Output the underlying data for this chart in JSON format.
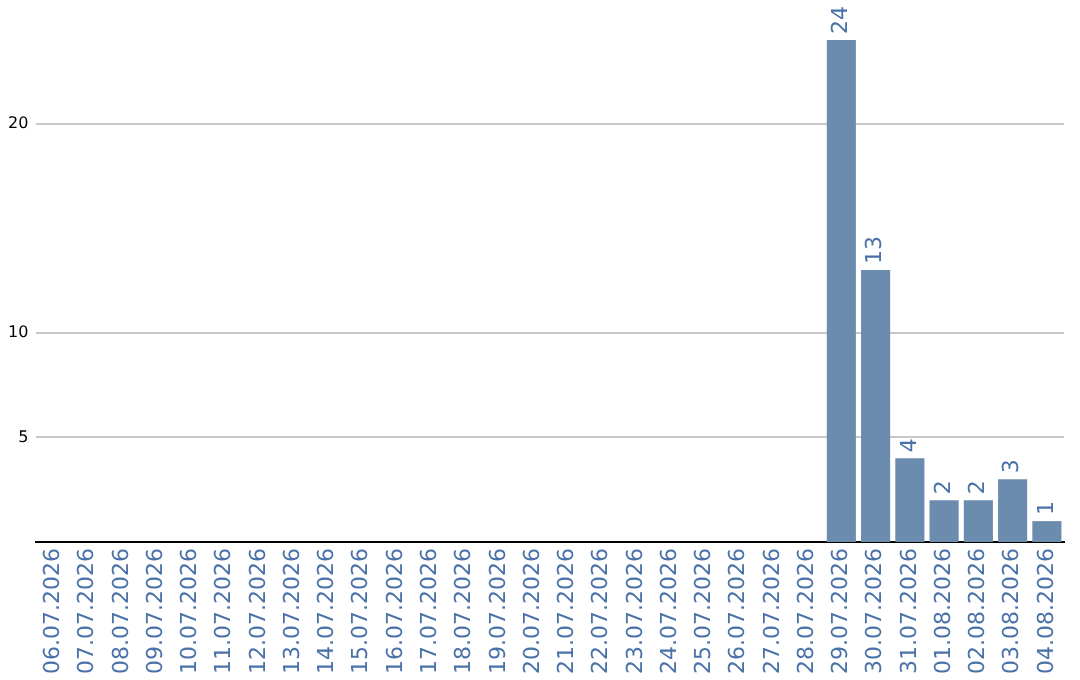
{
  "chart_data": {
    "type": "bar",
    "categories": [
      "06.07.2026",
      "07.07.2026",
      "08.07.2026",
      "09.07.2026",
      "10.07.2026",
      "11.07.2026",
      "12.07.2026",
      "13.07.2026",
      "14.07.2026",
      "15.07.2026",
      "16.07.2026",
      "17.07.2026",
      "18.07.2026",
      "19.07.2026",
      "20.07.2026",
      "21.07.2026",
      "22.07.2026",
      "23.07.2026",
      "24.07.2026",
      "25.07.2026",
      "26.07.2026",
      "27.07.2026",
      "28.07.2026",
      "29.07.2026",
      "30.07.2026",
      "31.07.2026",
      "01.08.2026",
      "02.08.2026",
      "03.08.2026",
      "04.08.2026"
    ],
    "values": [
      0,
      0,
      0,
      0,
      0,
      0,
      0,
      0,
      0,
      0,
      0,
      0,
      0,
      0,
      0,
      0,
      0,
      0,
      0,
      0,
      0,
      0,
      0,
      24,
      13,
      4,
      2,
      2,
      3,
      1
    ],
    "value_labels": [
      null,
      null,
      null,
      null,
      null,
      null,
      null,
      null,
      null,
      null,
      null,
      null,
      null,
      null,
      null,
      null,
      null,
      null,
      null,
      null,
      null,
      null,
      null,
      "24",
      "13",
      "4",
      "2",
      "2",
      "3",
      "1"
    ],
    "color": "#6b8cae",
    "ylim": [
      0,
      24
    ],
    "yticks": [
      5,
      10,
      20
    ],
    "grid": "y",
    "legend": false
  }
}
